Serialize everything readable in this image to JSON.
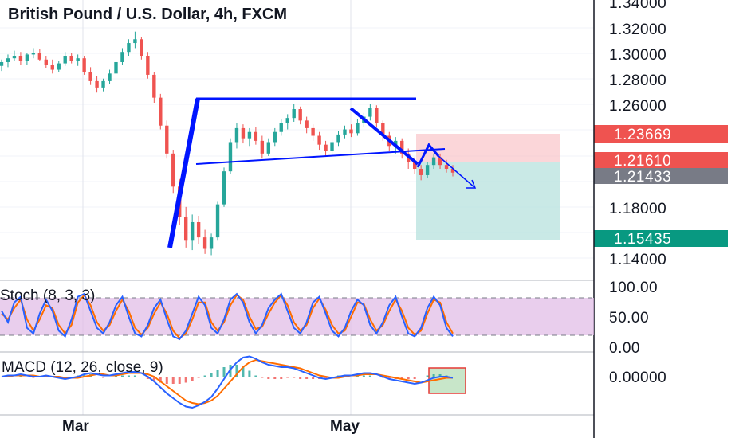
{
  "chart_data": [
    {
      "type": "candlestick",
      "title": "British Pound / U.S. Dollar, 4h, FXCM",
      "y_ticks": [
        "1.34000",
        "1.32000",
        "1.30000",
        "1.28000",
        "1.26000",
        "1.18000",
        "1.14000"
      ],
      "x_ticks": [
        "Mar",
        "May"
      ],
      "ylim": [
        1.135,
        1.345
      ],
      "price_tags": [
        {
          "value": "1.23669",
          "color": "#ef5350"
        },
        {
          "value": "1.21610",
          "color": "#ef5350"
        },
        {
          "value": "1.21433",
          "color": "#787b86"
        },
        {
          "value": "1.15435",
          "color": "#089981"
        }
      ],
      "colors": {
        "up": "#26a69a",
        "down": "#ef5350",
        "drawing": "#0015ff"
      },
      "candles": [
        [
          0,
          1.295,
          1.3,
          1.291,
          1.298
        ],
        [
          1,
          1.298,
          1.304,
          1.294,
          1.301
        ],
        [
          2,
          1.301,
          1.307,
          1.299,
          1.303
        ],
        [
          3,
          1.303,
          1.306,
          1.296,
          1.299
        ],
        [
          4,
          1.299,
          1.305,
          1.296,
          1.304
        ],
        [
          5,
          1.304,
          1.309,
          1.301,
          1.305
        ],
        [
          6,
          1.305,
          1.308,
          1.299,
          1.3
        ],
        [
          7,
          1.3,
          1.303,
          1.293,
          1.296
        ],
        [
          8,
          1.296,
          1.3,
          1.289,
          1.292
        ],
        [
          9,
          1.292,
          1.299,
          1.29,
          1.297
        ],
        [
          10,
          1.297,
          1.306,
          1.295,
          1.303
        ],
        [
          11,
          1.303,
          1.305,
          1.297,
          1.299
        ],
        [
          12,
          1.299,
          1.304,
          1.295,
          1.301
        ],
        [
          13,
          1.301,
          1.303,
          1.288,
          1.29
        ],
        [
          14,
          1.29,
          1.294,
          1.28,
          1.283
        ],
        [
          15,
          1.283,
          1.287,
          1.274,
          1.278
        ],
        [
          16,
          1.278,
          1.285,
          1.275,
          1.283
        ],
        [
          17,
          1.283,
          1.292,
          1.281,
          1.289
        ],
        [
          18,
          1.289,
          1.3,
          1.287,
          1.298
        ],
        [
          19,
          1.298,
          1.309,
          1.296,
          1.306
        ],
        [
          20,
          1.306,
          1.316,
          1.303,
          1.313
        ],
        [
          21,
          1.313,
          1.322,
          1.309,
          1.316
        ],
        [
          22,
          1.316,
          1.318,
          1.3,
          1.303
        ],
        [
          23,
          1.303,
          1.306,
          1.285,
          1.288
        ],
        [
          24,
          1.288,
          1.29,
          1.266,
          1.27
        ],
        [
          25,
          1.27,
          1.273,
          1.245,
          1.248
        ],
        [
          26,
          1.248,
          1.252,
          1.222,
          1.226
        ],
        [
          27,
          1.226,
          1.229,
          1.195,
          1.2
        ],
        [
          28,
          1.2,
          1.206,
          1.17,
          1.176
        ],
        [
          29,
          1.176,
          1.184,
          1.152,
          1.158
        ],
        [
          30,
          1.158,
          1.178,
          1.15,
          1.172
        ],
        [
          31,
          1.172,
          1.177,
          1.155,
          1.16
        ],
        [
          32,
          1.16,
          1.166,
          1.147,
          1.151
        ],
        [
          33,
          1.151,
          1.163,
          1.146,
          1.16
        ],
        [
          34,
          1.16,
          1.188,
          1.158,
          1.186
        ],
        [
          35,
          1.186,
          1.215,
          1.184,
          1.212
        ],
        [
          36,
          1.212,
          1.238,
          1.21,
          1.235
        ],
        [
          37,
          1.235,
          1.25,
          1.23,
          1.246
        ],
        [
          38,
          1.246,
          1.249,
          1.234,
          1.238
        ],
        [
          39,
          1.238,
          1.246,
          1.232,
          1.243
        ],
        [
          40,
          1.243,
          1.247,
          1.233,
          1.236
        ],
        [
          41,
          1.236,
          1.24,
          1.222,
          1.226
        ],
        [
          42,
          1.226,
          1.238,
          1.224,
          1.235
        ],
        [
          43,
          1.235,
          1.246,
          1.232,
          1.243
        ],
        [
          44,
          1.243,
          1.253,
          1.24,
          1.25
        ],
        [
          45,
          1.25,
          1.257,
          1.245,
          1.254
        ],
        [
          46,
          1.254,
          1.265,
          1.251,
          1.261
        ],
        [
          47,
          1.261,
          1.263,
          1.249,
          1.252
        ],
        [
          48,
          1.252,
          1.255,
          1.242,
          1.246
        ],
        [
          49,
          1.246,
          1.249,
          1.236,
          1.24
        ],
        [
          50,
          1.24,
          1.243,
          1.229,
          1.233
        ],
        [
          51,
          1.233,
          1.236,
          1.224,
          1.228
        ],
        [
          52,
          1.228,
          1.237,
          1.225,
          1.235
        ],
        [
          53,
          1.235,
          1.244,
          1.232,
          1.241
        ],
        [
          54,
          1.241,
          1.248,
          1.238,
          1.245
        ],
        [
          55,
          1.245,
          1.249,
          1.239,
          1.242
        ],
        [
          56,
          1.242,
          1.253,
          1.24,
          1.25
        ],
        [
          57,
          1.25,
          1.258,
          1.247,
          1.255
        ],
        [
          58,
          1.255,
          1.265,
          1.252,
          1.262
        ],
        [
          59,
          1.262,
          1.264,
          1.247,
          1.25
        ],
        [
          60,
          1.25,
          1.252,
          1.236,
          1.24
        ],
        [
          61,
          1.24,
          1.243,
          1.228,
          1.232
        ],
        [
          62,
          1.232,
          1.239,
          1.226,
          1.236
        ],
        [
          63,
          1.236,
          1.238,
          1.222,
          1.226
        ],
        [
          64,
          1.226,
          1.23,
          1.214,
          1.219
        ],
        [
          65,
          1.219,
          1.223,
          1.21,
          1.214
        ],
        [
          66,
          1.214,
          1.217,
          1.205,
          1.209
        ],
        [
          67,
          1.209,
          1.219,
          1.207,
          1.217
        ],
        [
          68,
          1.217,
          1.226,
          1.214,
          1.223
        ],
        [
          69,
          1.223,
          1.226,
          1.214,
          1.217
        ],
        [
          70,
          1.217,
          1.221,
          1.211,
          1.214
        ],
        [
          71,
          1.214,
          1.217,
          1.208,
          1.211
        ]
      ]
    },
    {
      "type": "line",
      "title": "Stoch (8, 3, 3)",
      "y_ticks": [
        "100.00",
        "50.00",
        "0.00"
      ],
      "ylim": [
        0,
        100
      ],
      "band": [
        20,
        80
      ],
      "series": [
        {
          "color": "#2962ff",
          "values": [
            60,
            40,
            75,
            85,
            30,
            20,
            55,
            80,
            60,
            25,
            15,
            45,
            85,
            90,
            60,
            30,
            20,
            40,
            70,
            85,
            50,
            20,
            15,
            35,
            65,
            80,
            45,
            15,
            10,
            25,
            55,
            85,
            70,
            30,
            20,
            45,
            80,
            90,
            75,
            40,
            20,
            35,
            65,
            80,
            90,
            60,
            30,
            20,
            40,
            75,
            85,
            55,
            25,
            15,
            30,
            60,
            80,
            70,
            35,
            20,
            40,
            70,
            85,
            50,
            20,
            15,
            30,
            65,
            85,
            70,
            30,
            15
          ]
        },
        {
          "color": "#ff6d00",
          "values": [
            55,
            45,
            65,
            80,
            45,
            25,
            45,
            70,
            65,
            35,
            20,
            35,
            75,
            88,
            70,
            40,
            25,
            35,
            60,
            80,
            60,
            30,
            18,
            30,
            55,
            75,
            55,
            25,
            12,
            20,
            45,
            75,
            75,
            40,
            25,
            40,
            70,
            88,
            80,
            50,
            28,
            32,
            55,
            75,
            88,
            70,
            40,
            25,
            35,
            65,
            82,
            62,
            35,
            20,
            25,
            50,
            75,
            72,
            45,
            25,
            35,
            60,
            80,
            60,
            30,
            18,
            25,
            55,
            80,
            75,
            40,
            20
          ]
        }
      ]
    },
    {
      "type": "line",
      "title": "MACD (12, 26, close, 9)",
      "y_ticks": [
        "0.00000"
      ],
      "series": [
        {
          "color": "#2962ff",
          "values": [
            0.0,
            0.001,
            0.001,
            0.002,
            0.001,
            0.0,
            0.0,
            0.001,
            0.0,
            -0.001,
            -0.002,
            -0.001,
            0.0,
            0.002,
            0.003,
            0.002,
            0.001,
            0.001,
            0.002,
            0.003,
            0.004,
            0.004,
            0.003,
            0.0,
            -0.004,
            -0.009,
            -0.014,
            -0.018,
            -0.022,
            -0.025,
            -0.026,
            -0.024,
            -0.021,
            -0.017,
            -0.01,
            -0.002,
            0.006,
            0.012,
            0.016,
            0.017,
            0.015,
            0.012,
            0.01,
            0.009,
            0.008,
            0.008,
            0.007,
            0.005,
            0.003,
            0.001,
            -0.001,
            -0.002,
            -0.001,
            0.0,
            0.001,
            0.001,
            0.002,
            0.003,
            0.003,
            0.002,
            0.0,
            -0.002,
            -0.003,
            -0.004,
            -0.005,
            -0.006,
            -0.005,
            -0.003,
            -0.001,
            0.0,
            0.0,
            -0.001
          ]
        },
        {
          "color": "#ff6d00",
          "values": [
            0.0,
            0.0,
            0.001,
            0.001,
            0.001,
            0.001,
            0.0,
            0.0,
            0.0,
            0.0,
            -0.001,
            -0.001,
            -0.001,
            0.0,
            0.001,
            0.002,
            0.002,
            0.001,
            0.001,
            0.002,
            0.003,
            0.003,
            0.003,
            0.002,
            0.0,
            -0.004,
            -0.008,
            -0.012,
            -0.016,
            -0.02,
            -0.022,
            -0.023,
            -0.022,
            -0.02,
            -0.016,
            -0.01,
            -0.004,
            0.002,
            0.008,
            0.012,
            0.014,
            0.013,
            0.012,
            0.011,
            0.01,
            0.009,
            0.008,
            0.007,
            0.005,
            0.003,
            0.001,
            0.0,
            -0.001,
            -0.001,
            0.0,
            0.001,
            0.001,
            0.002,
            0.002,
            0.002,
            0.001,
            0.0,
            -0.001,
            -0.002,
            -0.003,
            -0.004,
            -0.005,
            -0.004,
            -0.003,
            -0.002,
            -0.001,
            -0.001
          ]
        }
      ]
    }
  ]
}
